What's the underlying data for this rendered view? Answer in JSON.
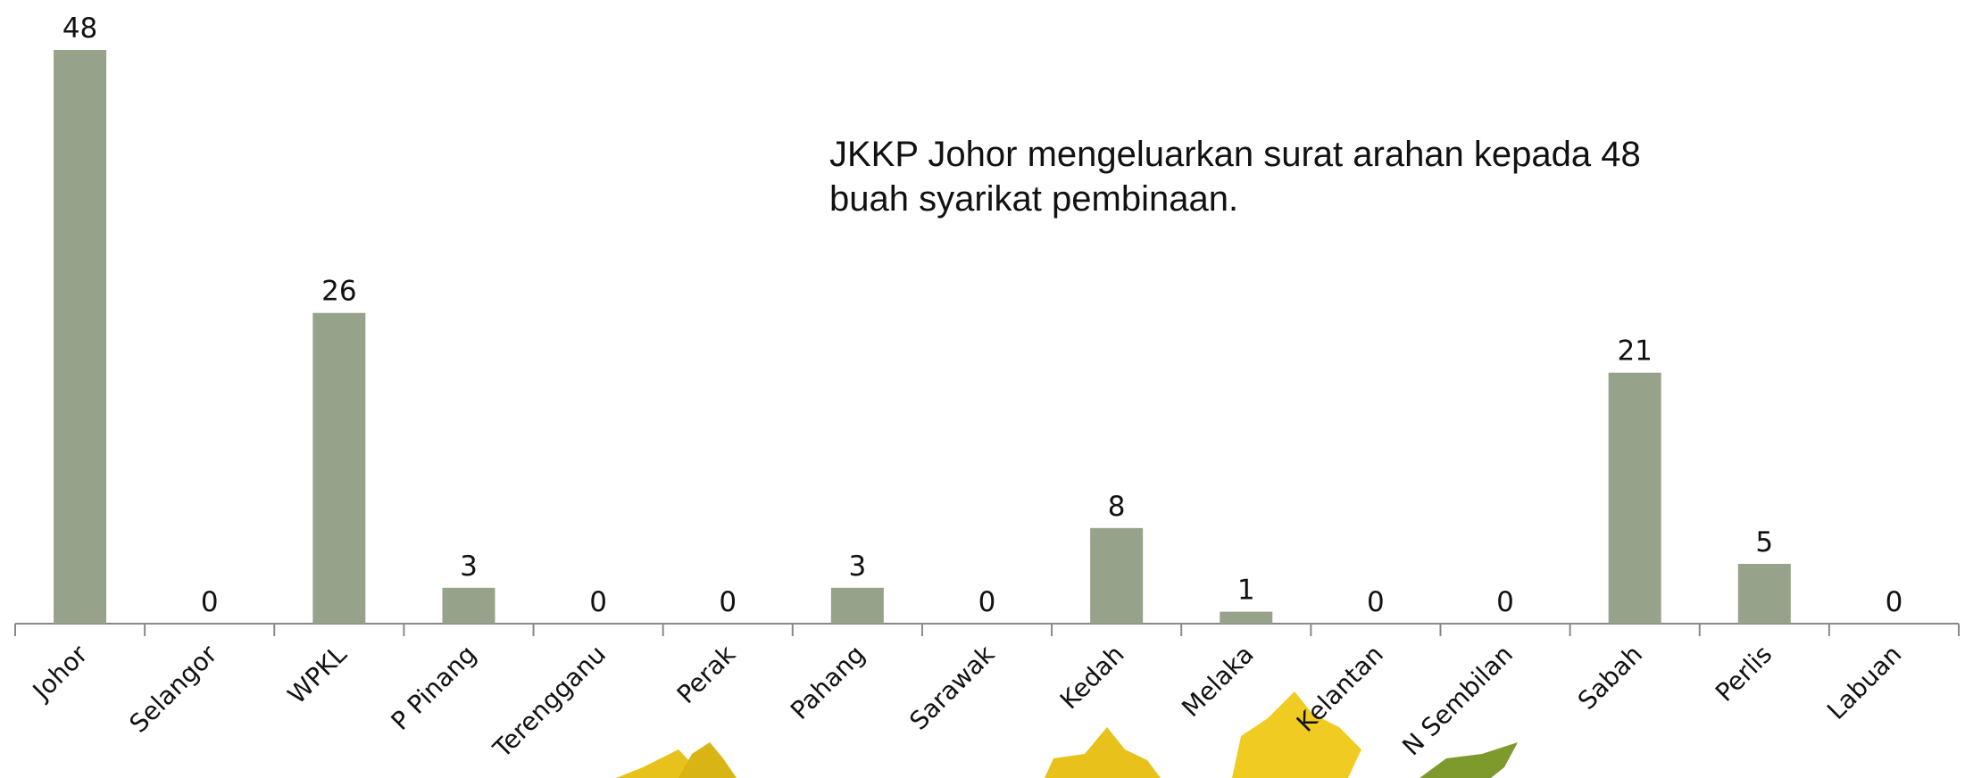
{
  "chart_data": {
    "type": "bar",
    "categories": [
      "Johor",
      "Selangor",
      "WPKL",
      "P Pinang",
      "Terengganu",
      "Perak",
      "Pahang",
      "Sarawak",
      "Kedah",
      "Melaka",
      "Kelantan",
      "N Sembilan",
      "Sabah",
      "Perlis",
      "Labuan"
    ],
    "values": [
      48,
      0,
      26,
      3,
      0,
      0,
      3,
      0,
      8,
      1,
      0,
      0,
      21,
      5,
      0
    ],
    "color": "#97a28a",
    "annotation": "JKKP Johor mengeluarkan surat arahan kepada 48 buah syarikat pembinaan."
  }
}
